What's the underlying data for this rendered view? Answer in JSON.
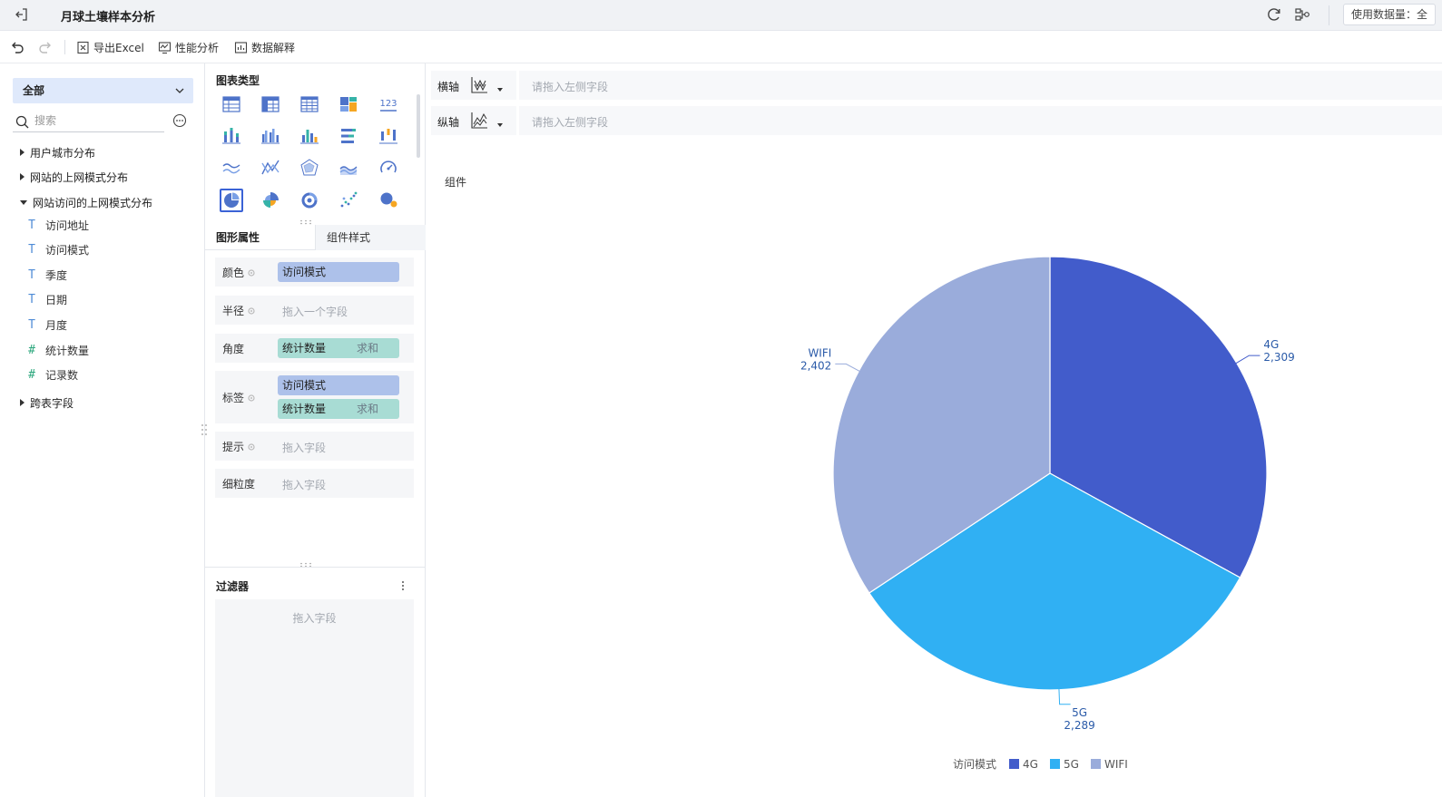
{
  "header": {
    "title": "月球土壤样本分析",
    "usage_label": "使用数据量：全"
  },
  "toolbar": {
    "export_label": "导出Excel",
    "perf_label": "性能分析",
    "explain_label": "数据解释"
  },
  "sidebar": {
    "dataset": "全部",
    "search_placeholder": "搜索",
    "groups": [
      {
        "label": "用户城市分布",
        "open": false
      },
      {
        "label": "网站的上网模式分布",
        "open": false
      },
      {
        "label": "网站访问的上网模式分布",
        "open": true
      }
    ],
    "fields": [
      {
        "type": "T",
        "label": "访问地址"
      },
      {
        "type": "T",
        "label": "访问模式"
      },
      {
        "type": "T",
        "label": "季度"
      },
      {
        "type": "T",
        "label": "日期"
      },
      {
        "type": "T",
        "label": "月度"
      },
      {
        "type": "#",
        "label": "统计数量"
      },
      {
        "type": "#",
        "label": "记录数"
      }
    ],
    "extra_group": "跨表字段"
  },
  "chart_types": {
    "title": "图表类型",
    "table_number_label": "123",
    "selected": "pie"
  },
  "props": {
    "tab_graph": "图形属性",
    "tab_style": "组件样式",
    "color_label": "颜色",
    "color_field": "访问模式",
    "radius_label": "半径",
    "radius_placeholder": "拖入一个字段",
    "angle_label": "角度",
    "angle_field": "统计数量",
    "angle_agg": "求和",
    "label_label": "标签",
    "label_field1": "访问模式",
    "label_field2": "统计数量",
    "label_agg": "求和",
    "tooltip_label": "提示",
    "tooltip_placeholder": "拖入字段",
    "granularity_label": "细粒度",
    "granularity_placeholder": "拖入字段"
  },
  "filter": {
    "title": "过滤器",
    "placeholder": "拖入字段"
  },
  "axes": {
    "x_label": "横轴",
    "x_placeholder": "请拖入左侧字段",
    "y_label": "纵轴",
    "y_placeholder": "请拖入左侧字段"
  },
  "component_label": "组件",
  "colors": {
    "4G": "#425ccb",
    "5G": "#30b0f3",
    "WIFI": "#9aacdb",
    "accent": "#3b63d6"
  },
  "chart_data": {
    "type": "pie",
    "categories": [
      "4G",
      "5G",
      "WIFI"
    ],
    "values": [
      2309,
      2289,
      2402
    ],
    "value_labels": [
      "2,309",
      "2,289",
      "2,402"
    ],
    "legend_title": "访问模式",
    "legend_position": "bottom",
    "start_angle": "top, clockwise"
  }
}
